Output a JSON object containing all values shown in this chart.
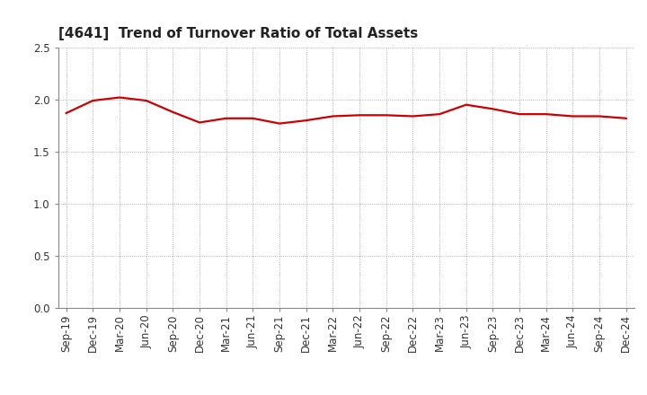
{
  "title": "[4641]  Trend of Turnover Ratio of Total Assets",
  "x_labels": [
    "Sep-19",
    "Dec-19",
    "Mar-20",
    "Jun-20",
    "Sep-20",
    "Dec-20",
    "Mar-21",
    "Jun-21",
    "Sep-21",
    "Dec-21",
    "Mar-22",
    "Jun-22",
    "Sep-22",
    "Dec-22",
    "Mar-23",
    "Jun-23",
    "Sep-23",
    "Dec-23",
    "Mar-24",
    "Jun-24",
    "Sep-24",
    "Dec-24"
  ],
  "values": [
    1.87,
    1.99,
    2.02,
    1.99,
    1.88,
    1.78,
    1.82,
    1.82,
    1.77,
    1.8,
    1.84,
    1.85,
    1.85,
    1.84,
    1.86,
    1.95,
    1.91,
    1.86,
    1.86,
    1.84,
    1.84,
    1.82
  ],
  "line_color": "#cc0000",
  "line_width": 1.6,
  "ylim": [
    0.0,
    2.5
  ],
  "yticks": [
    0.0,
    0.5,
    1.0,
    1.5,
    2.0,
    2.5
  ],
  "grid_color": "#999999",
  "background_color": "#ffffff",
  "title_fontsize": 11,
  "tick_fontsize": 8.5,
  "title_color": "#222222",
  "title_fontweight": "bold"
}
